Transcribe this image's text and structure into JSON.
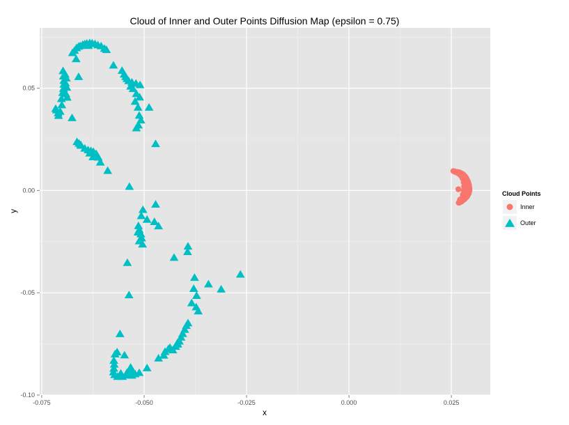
{
  "chart_data": {
    "type": "scatter",
    "title": "Cloud of Inner and Outer Points Diffusion Map (epsilon = 0.75)",
    "xlabel": "x",
    "ylabel": "y",
    "xlim": [
      -0.0755,
      0.0345
    ],
    "ylim": [
      -0.1,
      0.0795
    ],
    "x_ticks": [
      -0.075,
      -0.05,
      -0.025,
      0.0,
      0.025
    ],
    "x_tick_labels": [
      "-0.075",
      "-0.050",
      "-0.025",
      "0.000",
      "0.025"
    ],
    "y_ticks": [
      -0.1,
      -0.05,
      0.0,
      0.05
    ],
    "y_tick_labels": [
      "-0.10",
      "-0.05",
      "0.00",
      "0.05"
    ],
    "grid": true,
    "background_color": "#e5e5e5",
    "legend": {
      "title": "Cloud Points",
      "position": "right"
    },
    "series": [
      {
        "name": "Inner",
        "marker": "circle",
        "color": "#f8766d",
        "points": [
          [
            0.0255,
            0.0095
          ],
          [
            0.0258,
            0.0093
          ],
          [
            0.0262,
            0.0091
          ],
          [
            0.0266,
            0.009
          ],
          [
            0.027,
            0.0088
          ],
          [
            0.0273,
            0.0085
          ],
          [
            0.0276,
            0.0082
          ],
          [
            0.0279,
            0.0078
          ],
          [
            0.0281,
            0.0074
          ],
          [
            0.0283,
            0.0069
          ],
          [
            0.0285,
            0.0064
          ],
          [
            0.0287,
            0.0058
          ],
          [
            0.0288,
            0.0052
          ],
          [
            0.029,
            0.0046
          ],
          [
            0.0291,
            0.004
          ],
          [
            0.0292,
            0.0033
          ],
          [
            0.0293,
            0.0026
          ],
          [
            0.0293,
            0.0019
          ],
          [
            0.0294,
            0.0012
          ],
          [
            0.0294,
            0.0005
          ],
          [
            0.0294,
            -0.0002
          ],
          [
            0.0293,
            -0.0009
          ],
          [
            0.0292,
            -0.0016
          ],
          [
            0.029,
            -0.0023
          ],
          [
            0.0288,
            -0.003
          ],
          [
            0.0285,
            -0.0036
          ],
          [
            0.0282,
            -0.0042
          ],
          [
            0.0279,
            -0.0047
          ],
          [
            0.0276,
            -0.0052
          ],
          [
            0.0273,
            -0.0056
          ],
          [
            0.027,
            -0.0059
          ],
          [
            0.0268,
            -0.006
          ],
          [
            0.0275,
            -0.004
          ],
          [
            0.0278,
            -0.002
          ],
          [
            0.028,
            0.0
          ],
          [
            0.0281,
            0.002
          ],
          [
            0.028,
            0.004
          ],
          [
            0.0277,
            0.006
          ],
          [
            0.0272,
            0.0075
          ],
          [
            0.0268,
            0.0082
          ],
          [
            0.0285,
            0.001
          ],
          [
            0.0286,
            -0.0012
          ],
          [
            0.0283,
            0.0048
          ],
          [
            0.0289,
            -0.0026
          ],
          [
            0.029,
            0.0028
          ],
          [
            0.0287,
            0.0018
          ],
          [
            0.0271,
            -0.0045
          ],
          [
            0.0276,
            0.0066
          ],
          [
            0.0265,
            0.0086
          ],
          [
            0.026,
            0.009
          ],
          [
            0.0267,
            0.0006
          ]
        ]
      },
      {
        "name": "Outer",
        "marker": "triangle",
        "color": "#00bfc4",
        "points": [
          [
            -0.0714,
            0.0392
          ],
          [
            -0.071,
            0.0378
          ],
          [
            -0.0709,
            0.0365
          ],
          [
            -0.0716,
            0.0399
          ],
          [
            -0.0705,
            0.0385
          ],
          [
            -0.0701,
            0.0417
          ],
          [
            -0.0702,
            0.0447
          ],
          [
            -0.0699,
            0.0477
          ],
          [
            -0.0697,
            0.0497
          ],
          [
            -0.0696,
            0.0518
          ],
          [
            -0.0696,
            0.0536
          ],
          [
            -0.0697,
            0.0558
          ],
          [
            -0.0698,
            0.0584
          ],
          [
            -0.0693,
            0.0567
          ],
          [
            -0.069,
            0.0548
          ],
          [
            -0.0692,
            0.0524
          ],
          [
            -0.0689,
            0.0503
          ],
          [
            -0.0691,
            0.0471
          ],
          [
            -0.0688,
            0.0454
          ],
          [
            -0.0676,
            0.0354
          ],
          [
            -0.0675,
            0.0672
          ],
          [
            -0.067,
            0.0683
          ],
          [
            -0.0665,
            0.0696
          ],
          [
            -0.066,
            0.0703
          ],
          [
            -0.0656,
            0.0706
          ],
          [
            -0.065,
            0.0712
          ],
          [
            -0.0645,
            0.0715
          ],
          [
            -0.064,
            0.0718
          ],
          [
            -0.0633,
            0.072
          ],
          [
            -0.0627,
            0.0719
          ],
          [
            -0.062,
            0.0716
          ],
          [
            -0.0613,
            0.071
          ],
          [
            -0.0605,
            0.0705
          ],
          [
            -0.0597,
            0.0693
          ],
          [
            -0.0592,
            0.0687
          ],
          [
            -0.0636,
            0.0707
          ],
          [
            -0.0666,
            0.0642
          ],
          [
            -0.066,
            0.0555
          ],
          [
            -0.0575,
            0.0611
          ],
          [
            -0.0554,
            0.0585
          ],
          [
            -0.0549,
            0.0567
          ],
          [
            -0.0545,
            0.0555
          ],
          [
            -0.0542,
            0.0545
          ],
          [
            -0.0538,
            0.0535
          ],
          [
            -0.053,
            0.0528
          ],
          [
            -0.052,
            0.0522
          ],
          [
            -0.051,
            0.0515
          ],
          [
            -0.0533,
            0.0508
          ],
          [
            -0.0527,
            0.0496
          ],
          [
            -0.0519,
            0.0472
          ],
          [
            -0.0511,
            0.0455
          ],
          [
            -0.0522,
            0.0434
          ],
          [
            -0.0515,
            0.0405
          ],
          [
            -0.0488,
            0.0405
          ],
          [
            -0.0512,
            0.0366
          ],
          [
            -0.0508,
            0.0343
          ],
          [
            -0.0519,
            0.0304
          ],
          [
            -0.0514,
            0.0318
          ],
          [
            -0.0472,
            0.0227
          ],
          [
            -0.0664,
            0.0237
          ],
          [
            -0.0659,
            0.0229
          ],
          [
            -0.0654,
            0.0219
          ],
          [
            -0.0645,
            0.0205
          ],
          [
            -0.0637,
            0.0197
          ],
          [
            -0.063,
            0.0193
          ],
          [
            -0.0624,
            0.0189
          ],
          [
            -0.0617,
            0.0178
          ],
          [
            -0.0612,
            0.0161
          ],
          [
            -0.0607,
            0.0137
          ],
          [
            -0.0589,
            0.0096
          ],
          [
            -0.0655,
            0.0222
          ],
          [
            -0.0633,
            0.0181
          ],
          [
            -0.0621,
            0.0172
          ],
          [
            -0.0625,
            0.0163
          ],
          [
            -0.0536,
            0.0018
          ],
          [
            -0.0503,
            -0.0095
          ],
          [
            -0.0507,
            -0.0125
          ],
          [
            -0.0472,
            -0.0069
          ],
          [
            -0.0493,
            -0.0143
          ],
          [
            -0.0514,
            -0.0174
          ],
          [
            -0.0512,
            -0.0193
          ],
          [
            -0.0515,
            -0.0205
          ],
          [
            -0.0508,
            -0.0214
          ],
          [
            -0.0506,
            -0.0234
          ],
          [
            -0.0512,
            -0.0248
          ],
          [
            -0.0504,
            -0.0264
          ],
          [
            -0.0475,
            -0.0154
          ],
          [
            -0.0465,
            -0.0175
          ],
          [
            -0.0541,
            -0.0354
          ],
          [
            -0.0393,
            -0.0274
          ],
          [
            -0.0394,
            -0.0301
          ],
          [
            -0.0427,
            -0.0329
          ],
          [
            -0.0377,
            -0.0427
          ],
          [
            -0.0343,
            -0.0459
          ],
          [
            -0.0379,
            -0.0481
          ],
          [
            -0.0372,
            -0.0515
          ],
          [
            -0.0373,
            -0.0571
          ],
          [
            -0.0384,
            -0.0551
          ],
          [
            -0.0368,
            -0.0591
          ],
          [
            -0.0312,
            -0.0484
          ],
          [
            -0.0265,
            -0.0411
          ],
          [
            -0.0537,
            -0.0512
          ],
          [
            -0.0559,
            -0.0702
          ],
          [
            -0.0393,
            -0.0649
          ],
          [
            -0.0397,
            -0.0662
          ],
          [
            -0.0401,
            -0.0681
          ],
          [
            -0.0406,
            -0.0701
          ],
          [
            -0.041,
            -0.0719
          ],
          [
            -0.0414,
            -0.0738
          ],
          [
            -0.0418,
            -0.0753
          ],
          [
            -0.0423,
            -0.0764
          ],
          [
            -0.043,
            -0.0781
          ],
          [
            -0.0441,
            -0.0776
          ],
          [
            -0.0449,
            -0.0789
          ],
          [
            -0.0465,
            -0.0821
          ],
          [
            -0.0493,
            -0.0869
          ],
          [
            -0.0512,
            -0.0892
          ],
          [
            -0.0522,
            -0.0898
          ],
          [
            -0.053,
            -0.0905
          ],
          [
            -0.0543,
            -0.0904
          ],
          [
            -0.0553,
            -0.0911
          ],
          [
            -0.0565,
            -0.0911
          ],
          [
            -0.0572,
            -0.0902
          ],
          [
            -0.0575,
            -0.0889
          ],
          [
            -0.0574,
            -0.0871
          ],
          [
            -0.0573,
            -0.0851
          ],
          [
            -0.0574,
            -0.0832
          ],
          [
            -0.0571,
            -0.0801
          ],
          [
            -0.0566,
            -0.0791
          ],
          [
            -0.0548,
            -0.0806
          ],
          [
            -0.0533,
            -0.0866
          ],
          [
            -0.0536,
            -0.0883
          ],
          [
            -0.0557,
            -0.0895
          ],
          [
            -0.0419,
            -0.0747
          ],
          [
            -0.0437,
            -0.0769
          ],
          [
            -0.0452,
            -0.0807
          ],
          [
            -0.0527,
            -0.0895
          ],
          [
            -0.0542,
            -0.0892
          ]
        ]
      }
    ]
  }
}
